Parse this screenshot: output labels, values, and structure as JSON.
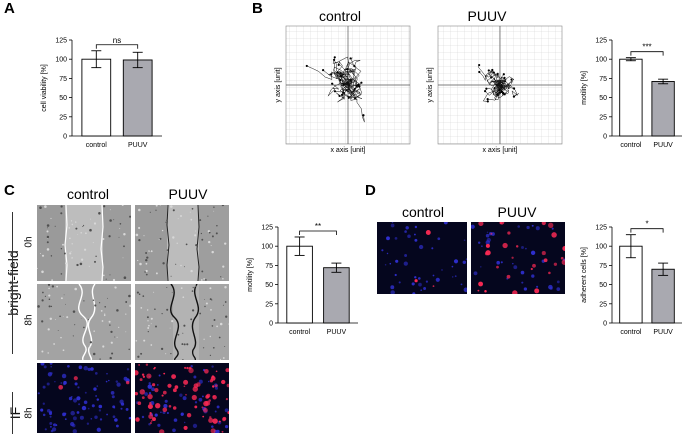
{
  "panels": {
    "A": {
      "letter": "A"
    },
    "B": {
      "letter": "B",
      "titles": [
        "control",
        "PUUV"
      ],
      "axis_x": "x axis [unit]",
      "axis_y": "y axis [unit]"
    },
    "C": {
      "letter": "C",
      "titles": [
        "control",
        "PUUV"
      ],
      "row_group": "bright-field",
      "rows": [
        "0h",
        "8h",
        "8h"
      ],
      "if_label": "IF"
    },
    "D": {
      "letter": "D",
      "titles": [
        "control",
        "PUUV"
      ]
    }
  },
  "colors": {
    "control_bar": "#ffffff",
    "puuv_bar": "#a9a9b0",
    "if_background": "#05061e",
    "if_nuclei": "#2f2fd0",
    "if_red": "#ff2a55"
  },
  "chart_data": [
    {
      "id": "A",
      "type": "bar",
      "categories": [
        "control",
        "PUUV"
      ],
      "values": [
        100,
        99
      ],
      "errors": [
        11,
        10
      ],
      "ylabel": "cell viability [%]",
      "ylim": [
        0,
        125
      ],
      "yticks": [
        0,
        25,
        50,
        75,
        100,
        125
      ],
      "significance": "ns"
    },
    {
      "id": "B",
      "type": "bar",
      "categories": [
        "control",
        "PUUV"
      ],
      "values": [
        100,
        71
      ],
      "errors": [
        2,
        3
      ],
      "ylabel": "motility [%]",
      "ylim": [
        0,
        125
      ],
      "yticks": [
        0,
        25,
        50,
        75,
        100,
        125
      ],
      "significance": "***"
    },
    {
      "id": "C",
      "type": "bar",
      "categories": [
        "control",
        "PUUV"
      ],
      "values": [
        100,
        72
      ],
      "errors": [
        12,
        6
      ],
      "ylabel": "motility [%]",
      "ylim": [
        0,
        125
      ],
      "yticks": [
        0,
        25,
        50,
        75,
        100,
        125
      ],
      "significance": "**"
    },
    {
      "id": "D",
      "type": "bar",
      "categories": [
        "control",
        "PUUV"
      ],
      "values": [
        100,
        70
      ],
      "errors": [
        15,
        8
      ],
      "ylabel": "adherent cells [%]",
      "ylim": [
        0,
        125
      ],
      "yticks": [
        0,
        25,
        50,
        75,
        100,
        125
      ],
      "significance": "*"
    }
  ]
}
